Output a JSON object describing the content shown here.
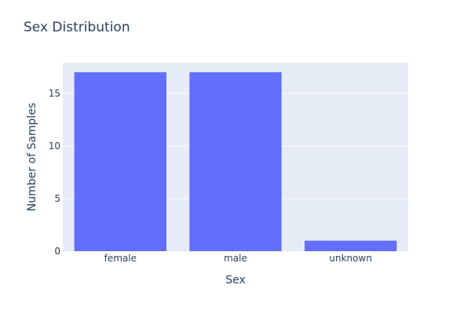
{
  "chart_data": {
    "type": "bar",
    "title": "Sex Distribution",
    "xlabel": "Sex",
    "ylabel": "Number of Samples",
    "categories": [
      "female",
      "male",
      "unknown"
    ],
    "values": [
      17,
      17,
      1
    ],
    "ylim": [
      0,
      17.9
    ],
    "yticks": [
      0,
      5,
      10,
      15
    ],
    "grid": true,
    "legend": "none",
    "colors": {
      "bar": "#636efa",
      "plot_background": "#e5ecf6",
      "gridline": "#ffffff",
      "text": "#2a3f5f"
    }
  }
}
